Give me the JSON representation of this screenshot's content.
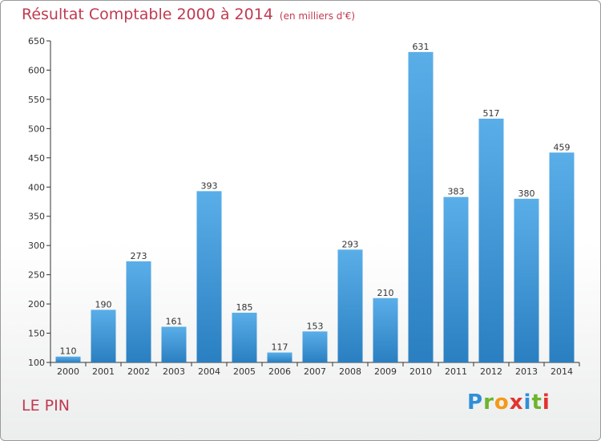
{
  "chart_data": {
    "type": "bar",
    "title": "Résultat Comptable 2000 à 2014",
    "subtitle": "(en milliers d'€)",
    "categories": [
      "2000",
      "2001",
      "2002",
      "2003",
      "2004",
      "2005",
      "2006",
      "2007",
      "2008",
      "2009",
      "2010",
      "2011",
      "2012",
      "2013",
      "2014"
    ],
    "values": [
      110,
      190,
      273,
      161,
      393,
      185,
      117,
      153,
      293,
      210,
      631,
      383,
      517,
      380,
      459
    ],
    "ylim": [
      100,
      650
    ],
    "yticks": [
      100,
      150,
      200,
      250,
      300,
      350,
      400,
      450,
      500,
      550,
      600,
      650
    ],
    "xlabel": "",
    "ylabel": "",
    "grid": false,
    "legend": "none",
    "bar_color_light": "#5aaee8",
    "bar_color_dark": "#2a7fc1"
  },
  "footer": {
    "commune": "LE PIN",
    "logo": "Proxiti"
  },
  "colors": {
    "title": "#c03a50",
    "frame_border": "#9a9a9a",
    "axis": "#333333"
  }
}
